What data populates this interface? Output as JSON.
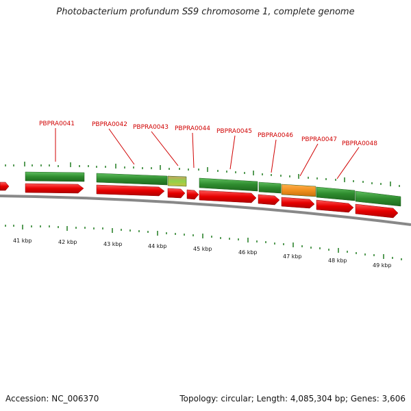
{
  "header": {
    "title": "Photobacterium profundum SS9 chromosome 1, complete genome"
  },
  "footer": {
    "accession": "Accession: NC_006370",
    "summary": "Topology: circular; Length: 4,085,304 bp; Genes: 3,606"
  },
  "genes": [
    "PBPRA0041",
    "PBPRA0042",
    "PBPRA0043",
    "PBPRA0044",
    "PBPRA0045",
    "PBPRA0046",
    "PBPRA0047",
    "PBPRA0048"
  ],
  "scale": [
    "41 kbp",
    "42 kbp",
    "43 kbp",
    "44 kbp",
    "45 kbp",
    "46 kbp",
    "47 kbp",
    "48 kbp",
    "49 kbp"
  ],
  "colors": {
    "cds": "#e60000",
    "gene": "#2e8b2e",
    "gene_highlight": "#f0901e",
    "gene_light": "#8fd24a",
    "label": "#d00000",
    "tick": "#1f7a1f",
    "backbone": "#888888"
  }
}
